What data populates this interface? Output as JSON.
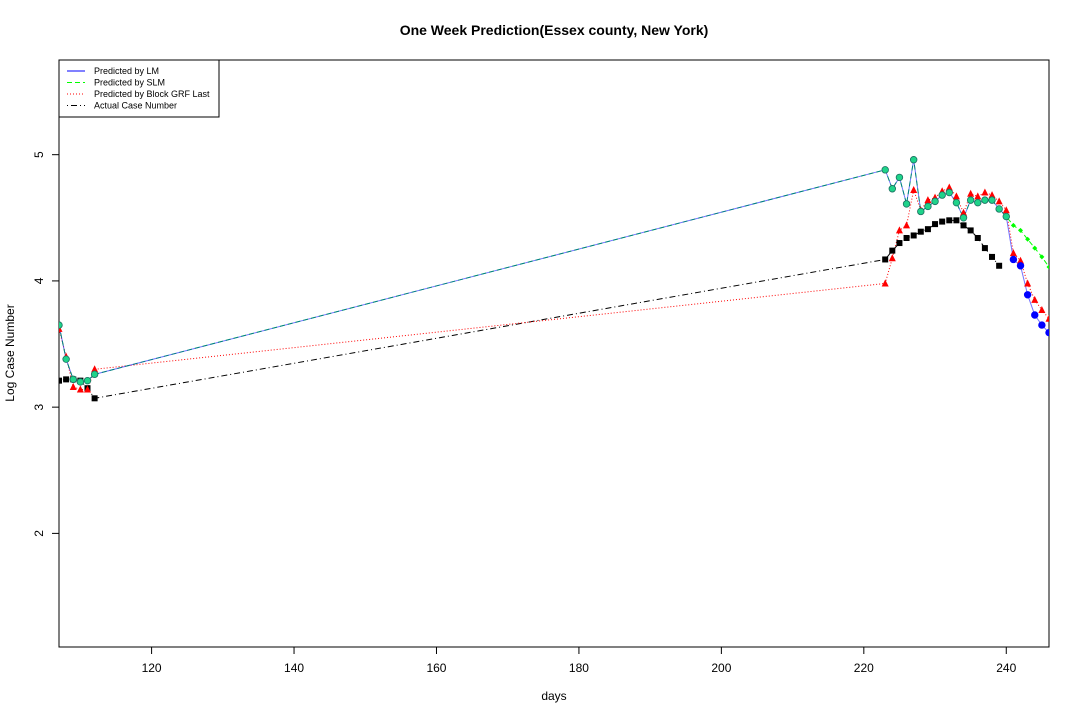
{
  "chart_data": {
    "type": "line",
    "title": "One Week Prediction(Essex county, New York)",
    "xlabel": "days",
    "ylabel": "Log Case Number",
    "xlim": [
      107,
      246
    ],
    "ylim": [
      1.1,
      5.75
    ],
    "x_ticks": [
      120,
      140,
      160,
      180,
      200,
      220,
      240
    ],
    "y_ticks": [
      2,
      3,
      4,
      5
    ],
    "legend_position": "top-left",
    "legend": [
      {
        "label": "Predicted by LM",
        "color": "#0000ff",
        "style": "solid"
      },
      {
        "label": "Predicted by SLM",
        "color": "#00ff00",
        "style": "dashed"
      },
      {
        "label": "Predicted by Block GRF Last",
        "color": "#ff0000",
        "style": "dotted"
      },
      {
        "label": "Actual Case Number",
        "color": "#000000",
        "style": "dotdash"
      }
    ],
    "series": [
      {
        "name": "Predicted by LM",
        "color": "#0000ff",
        "x": [
          107,
          108,
          109,
          110,
          111,
          112,
          223,
          224,
          225,
          226,
          227,
          228,
          229,
          230,
          231,
          232,
          233,
          234,
          235,
          236,
          237,
          238,
          239,
          240,
          241,
          242,
          243,
          244,
          245,
          246
        ],
        "y": [
          3.65,
          3.38,
          3.22,
          3.2,
          3.21,
          3.26,
          4.88,
          4.73,
          4.82,
          4.61,
          4.96,
          4.55,
          4.59,
          4.63,
          4.68,
          4.7,
          4.62,
          4.5,
          4.64,
          4.62,
          4.64,
          4.64,
          4.57,
          4.51,
          4.17,
          4.12,
          3.89,
          3.73,
          3.65,
          3.59
        ]
      },
      {
        "name": "Predicted by SLM",
        "color": "#00ff00",
        "x": [
          107,
          108,
          109,
          110,
          111,
          112,
          223,
          224,
          225,
          226,
          227,
          228,
          229,
          230,
          231,
          232,
          233,
          234,
          235,
          236,
          237,
          238,
          239,
          240,
          241,
          242,
          243,
          244,
          245,
          246
        ],
        "y": [
          3.65,
          3.38,
          3.22,
          3.2,
          3.21,
          3.26,
          4.88,
          4.73,
          4.82,
          4.61,
          4.96,
          4.55,
          4.59,
          4.63,
          4.68,
          4.7,
          4.62,
          4.5,
          4.64,
          4.62,
          4.64,
          4.64,
          4.57,
          4.51,
          4.44,
          4.4,
          4.33,
          4.26,
          4.19,
          4.11
        ]
      },
      {
        "name": "Predicted by Block GRF Last",
        "color": "#ff0000",
        "x": [
          107,
          108,
          109,
          110,
          111,
          112,
          223,
          224,
          225,
          226,
          227,
          228,
          229,
          230,
          231,
          232,
          233,
          234,
          235,
          236,
          237,
          238,
          239,
          240,
          241,
          242,
          243,
          244,
          245,
          246
        ],
        "y": [
          3.62,
          3.4,
          3.16,
          3.14,
          3.14,
          3.3,
          3.98,
          4.18,
          4.4,
          4.44,
          4.72,
          4.56,
          4.64,
          4.66,
          4.71,
          4.74,
          4.67,
          4.54,
          4.69,
          4.67,
          4.7,
          4.68,
          4.63,
          4.56,
          4.22,
          4.16,
          3.98,
          3.85,
          3.77,
          3.7
        ]
      },
      {
        "name": "Actual Case Number",
        "color": "#000000",
        "x": [
          107,
          108,
          109,
          110,
          111,
          112,
          223,
          224,
          225,
          226,
          227,
          228,
          229,
          230,
          231,
          232,
          233,
          234,
          235,
          236,
          237,
          238,
          239
        ],
        "y": [
          3.21,
          3.22,
          3.22,
          3.21,
          3.15,
          3.07,
          4.17,
          4.24,
          4.3,
          4.34,
          4.36,
          4.39,
          4.41,
          4.45,
          4.47,
          4.48,
          4.48,
          4.44,
          4.4,
          4.34,
          4.26,
          4.19,
          4.12
        ]
      }
    ]
  }
}
